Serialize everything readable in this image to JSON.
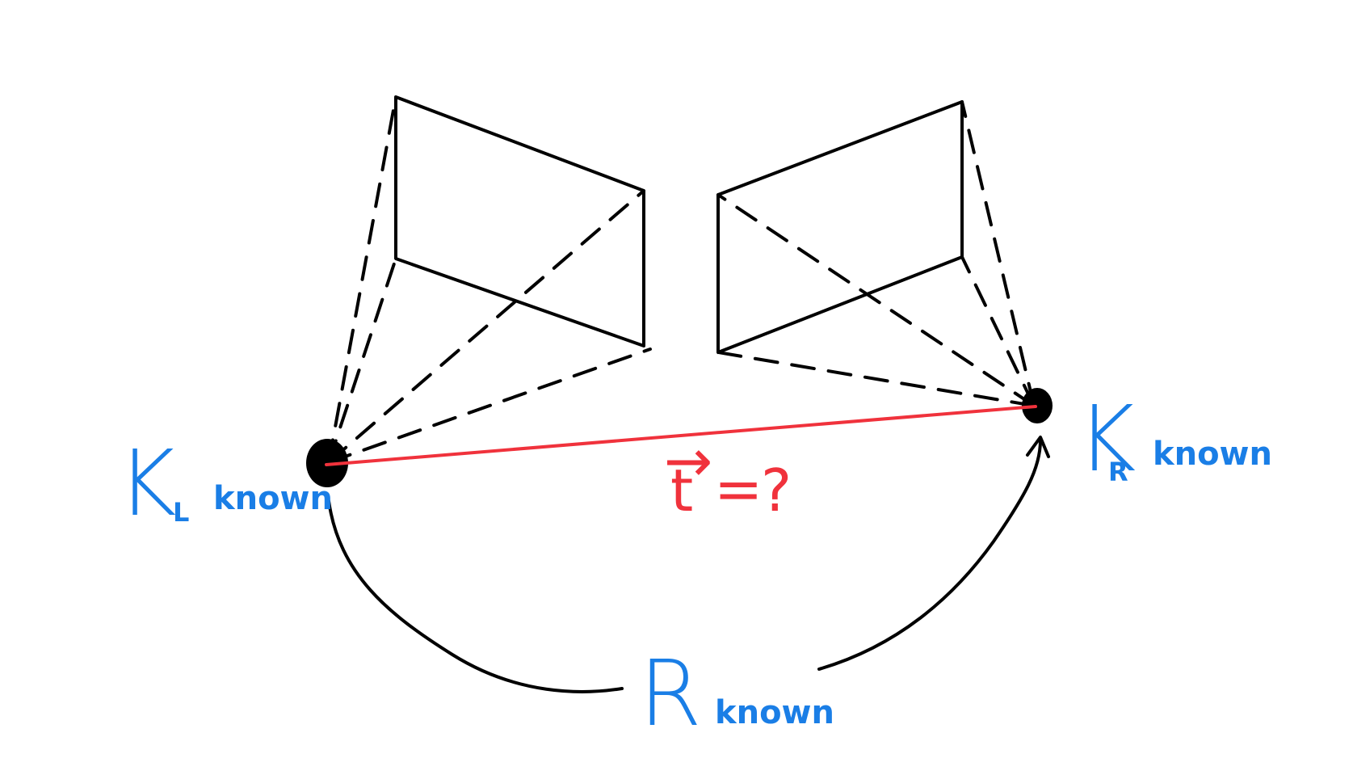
{
  "colors": {
    "line": "#000000",
    "label": "#1a7ee6",
    "translation": "#f0323c",
    "background": "#ffffff"
  },
  "left_camera": {
    "symbol": "K",
    "subscript": "L",
    "status": "known"
  },
  "right_camera": {
    "symbol": "K",
    "subscript": "R",
    "status": "known"
  },
  "rotation": {
    "symbol": "R",
    "status": "known"
  },
  "translation": {
    "symbol": "t",
    "arrow": "→",
    "equals": "=",
    "value": "?"
  }
}
